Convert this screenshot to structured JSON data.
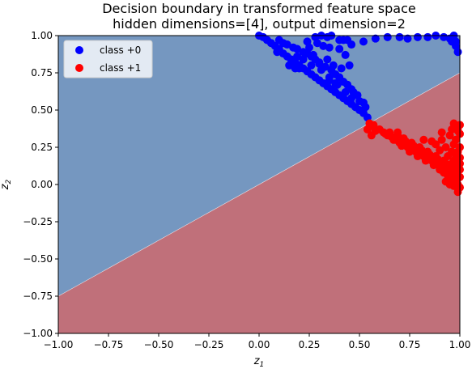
{
  "chart_data": {
    "type": "scatter",
    "title_line1": "Decision boundary in transformed feature space",
    "title_line2": "hidden dimensions=[4], output dimension=2",
    "xlabel": "z",
    "xlabel_sub": "1",
    "ylabel": "z",
    "ylabel_sub": "2",
    "xlim": [
      -1.0,
      1.0
    ],
    "ylim": [
      -1.0,
      1.0
    ],
    "xticks": [
      "−1.00",
      "−0.75",
      "−0.50",
      "−0.25",
      "0.00",
      "0.25",
      "0.50",
      "0.75",
      "1.00"
    ],
    "yticks": [
      "1.00",
      "0.75",
      "0.50",
      "0.25",
      "0.00",
      "−0.25",
      "−0.50",
      "−0.75",
      "−1.00"
    ],
    "xtick_values": [
      -1.0,
      -0.75,
      -0.5,
      -0.25,
      0.0,
      0.25,
      0.5,
      0.75,
      1.0
    ],
    "ytick_values": [
      1.0,
      0.75,
      0.5,
      0.25,
      0.0,
      -0.25,
      -0.5,
      -0.75,
      -1.0
    ],
    "decision_boundary": {
      "slope": 0.75,
      "intercept": 0.0
    },
    "regions": [
      {
        "class": "class +0",
        "color": "#7597c0"
      },
      {
        "class": "class +1",
        "color": "#c0707a"
      }
    ],
    "legend": {
      "placement": "upper-left",
      "entries": [
        {
          "label": "class +0",
          "color": "#0000ff"
        },
        {
          "label": "class +1",
          "color": "#ff0000"
        }
      ]
    },
    "series": [
      {
        "name": "class +0",
        "color": "#0000ff",
        "points": [
          [
            0.0,
            1.0
          ],
          [
            0.02,
            0.99
          ],
          [
            0.04,
            0.97
          ],
          [
            0.06,
            0.95
          ],
          [
            0.08,
            0.93
          ],
          [
            0.1,
            0.91
          ],
          [
            0.12,
            0.88
          ],
          [
            0.14,
            0.86
          ],
          [
            0.16,
            0.84
          ],
          [
            0.18,
            0.82
          ],
          [
            0.2,
            0.8
          ],
          [
            0.22,
            0.78
          ],
          [
            0.24,
            0.76
          ],
          [
            0.26,
            0.74
          ],
          [
            0.28,
            0.72
          ],
          [
            0.3,
            0.7
          ],
          [
            0.32,
            0.68
          ],
          [
            0.34,
            0.66
          ],
          [
            0.36,
            0.64
          ],
          [
            0.38,
            0.62
          ],
          [
            0.4,
            0.6
          ],
          [
            0.42,
            0.58
          ],
          [
            0.44,
            0.56
          ],
          [
            0.46,
            0.54
          ],
          [
            0.48,
            0.52
          ],
          [
            0.5,
            0.5
          ],
          [
            0.52,
            0.48
          ],
          [
            0.54,
            0.45
          ],
          [
            0.1,
            0.97
          ],
          [
            0.14,
            0.94
          ],
          [
            0.19,
            0.91
          ],
          [
            0.24,
            0.88
          ],
          [
            0.28,
            0.84
          ],
          [
            0.33,
            0.79
          ],
          [
            0.38,
            0.74
          ],
          [
            0.42,
            0.69
          ],
          [
            0.46,
            0.64
          ],
          [
            0.49,
            0.6
          ],
          [
            0.52,
            0.55
          ],
          [
            0.3,
            0.81
          ],
          [
            0.36,
            0.77
          ],
          [
            0.4,
            0.72
          ],
          [
            0.44,
            0.67
          ],
          [
            0.47,
            0.62
          ],
          [
            0.26,
            0.86
          ],
          [
            0.22,
            0.89
          ],
          [
            0.17,
            0.92
          ],
          [
            0.12,
            0.95
          ],
          [
            0.31,
            0.77
          ],
          [
            0.35,
            0.72
          ],
          [
            0.39,
            0.67
          ],
          [
            0.43,
            0.62
          ],
          [
            0.46,
            0.58
          ],
          [
            0.5,
            0.56
          ],
          [
            0.53,
            0.52
          ],
          [
            0.24,
            0.96
          ],
          [
            0.29,
            0.95
          ],
          [
            0.34,
            0.99
          ],
          [
            0.4,
            0.97
          ],
          [
            0.46,
            0.94
          ],
          [
            0.52,
            0.96
          ],
          [
            0.58,
            0.98
          ],
          [
            0.64,
            0.99
          ],
          [
            0.7,
            0.99
          ],
          [
            0.74,
            0.98
          ],
          [
            0.79,
            0.99
          ],
          [
            0.84,
            0.99
          ],
          [
            0.88,
            1.0
          ],
          [
            0.92,
            0.99
          ],
          [
            0.95,
            0.98
          ],
          [
            0.96,
            0.96
          ],
          [
            0.98,
            0.93
          ],
          [
            0.99,
            0.89
          ],
          [
            0.98,
            0.96
          ],
          [
            0.97,
            1.0
          ],
          [
            0.22,
            0.84
          ],
          [
            0.26,
            0.8
          ],
          [
            0.2,
            0.78
          ],
          [
            0.27,
            0.87
          ],
          [
            0.32,
            0.93
          ],
          [
            0.35,
            0.92
          ],
          [
            0.4,
            0.91
          ],
          [
            0.42,
            0.97
          ],
          [
            0.44,
            0.97
          ],
          [
            0.43,
            0.87
          ],
          [
            0.28,
            0.99
          ],
          [
            0.31,
            1.0
          ],
          [
            0.36,
            1.0
          ],
          [
            0.15,
            0.8
          ],
          [
            0.18,
            0.78
          ],
          [
            0.19,
            0.86
          ],
          [
            0.09,
            0.89
          ],
          [
            0.25,
            0.92
          ],
          [
            0.3,
            0.82
          ],
          [
            0.34,
            0.84
          ],
          [
            0.37,
            0.8
          ],
          [
            0.41,
            0.78
          ],
          [
            0.45,
            0.8
          ],
          [
            0.38,
            0.68
          ],
          [
            0.35,
            0.7
          ]
        ]
      },
      {
        "name": "class +1",
        "color": "#ff0000",
        "points": [
          [
            0.55,
            0.41
          ],
          [
            0.57,
            0.39
          ],
          [
            0.6,
            0.37
          ],
          [
            0.62,
            0.35
          ],
          [
            0.64,
            0.33
          ],
          [
            0.66,
            0.32
          ],
          [
            0.68,
            0.3
          ],
          [
            0.7,
            0.28
          ],
          [
            0.72,
            0.27
          ],
          [
            0.74,
            0.25
          ],
          [
            0.76,
            0.24
          ],
          [
            0.78,
            0.22
          ],
          [
            0.8,
            0.21
          ],
          [
            0.82,
            0.19
          ],
          [
            0.84,
            0.18
          ],
          [
            0.86,
            0.16
          ],
          [
            0.88,
            0.15
          ],
          [
            0.9,
            0.13
          ],
          [
            0.92,
            0.12
          ],
          [
            0.94,
            0.1
          ],
          [
            0.96,
            0.09
          ],
          [
            0.98,
            0.07
          ],
          [
            1.0,
            0.05
          ],
          [
            0.58,
            0.36
          ],
          [
            0.63,
            0.34
          ],
          [
            0.67,
            0.3
          ],
          [
            0.71,
            0.26
          ],
          [
            0.75,
            0.22
          ],
          [
            0.79,
            0.19
          ],
          [
            0.83,
            0.16
          ],
          [
            0.87,
            0.13
          ],
          [
            0.91,
            0.1
          ],
          [
            0.95,
            0.07
          ],
          [
            0.99,
            0.04
          ],
          [
            0.69,
            0.33
          ],
          [
            0.73,
            0.29
          ],
          [
            0.77,
            0.26
          ],
          [
            0.81,
            0.23
          ],
          [
            0.85,
            0.2
          ],
          [
            0.89,
            0.17
          ],
          [
            0.93,
            0.14
          ],
          [
            0.97,
            0.12
          ],
          [
            0.72,
            0.31
          ],
          [
            0.76,
            0.28
          ],
          [
            0.8,
            0.25
          ],
          [
            0.84,
            0.22
          ],
          [
            0.88,
            0.19
          ],
          [
            0.92,
            0.16
          ],
          [
            0.96,
            0.14
          ],
          [
            0.98,
            0.1
          ],
          [
            1.0,
            0.1
          ],
          [
            0.54,
            0.37
          ],
          [
            0.56,
            0.33
          ],
          [
            0.57,
            0.4
          ],
          [
            0.65,
            0.35
          ],
          [
            0.69,
            0.35
          ],
          [
            0.91,
            0.3
          ],
          [
            0.93,
            0.25
          ],
          [
            0.96,
            0.22
          ],
          [
            0.98,
            0.19
          ],
          [
            1.0,
            0.14
          ],
          [
            0.95,
            0.33
          ],
          [
            0.98,
            0.3
          ],
          [
            1.0,
            0.34
          ],
          [
            0.99,
            0.38
          ],
          [
            0.97,
            0.41
          ],
          [
            0.88,
            0.27
          ],
          [
            0.9,
            0.23
          ],
          [
            0.94,
            0.19
          ],
          [
            0.97,
            0.16
          ],
          [
            0.99,
            0.22
          ],
          [
            0.86,
            0.29
          ],
          [
            0.82,
            0.3
          ],
          [
            0.97,
            0.27
          ],
          [
            1.0,
            0.25
          ],
          [
            1.0,
            0.18
          ],
          [
            0.99,
            0.0
          ],
          [
            1.0,
            -0.02
          ],
          [
            0.99,
            -0.05
          ],
          [
            0.98,
            0.02
          ],
          [
            0.96,
            0.04
          ],
          [
            0.94,
            0.06
          ],
          [
            0.92,
            0.08
          ],
          [
            0.9,
            0.1
          ],
          [
            0.93,
            0.02
          ],
          [
            0.95,
            0.0
          ],
          [
            0.97,
            -0.01
          ],
          [
            1.0,
            0.4
          ],
          [
            0.99,
            0.36
          ],
          [
            0.96,
            0.37
          ],
          [
            0.91,
            0.35
          ]
        ]
      }
    ]
  }
}
